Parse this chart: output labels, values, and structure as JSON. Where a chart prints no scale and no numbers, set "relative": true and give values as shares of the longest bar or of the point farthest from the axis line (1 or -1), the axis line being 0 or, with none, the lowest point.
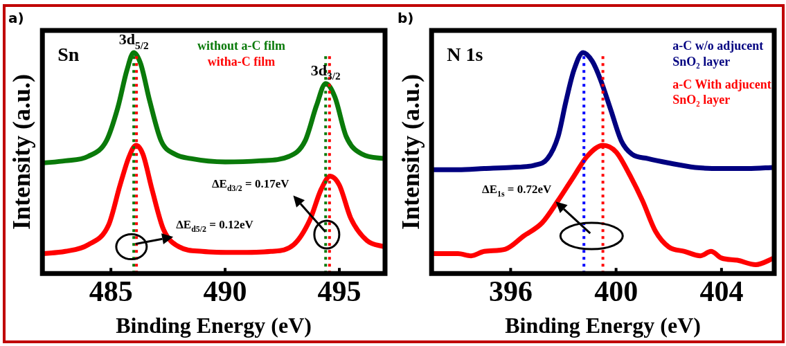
{
  "chart_data": [
    {
      "type": "line",
      "title": "a)",
      "xlabel": "Binding Energy (eV)",
      "ylabel": "Intensity (a.u.)",
      "relative": true,
      "legend": "top",
      "line_style": "solid",
      "xlim": [
        482,
        497
      ],
      "xticks": [
        485,
        490,
        495
      ],
      "series": [
        {
          "name": "without a-C film",
          "color": "#0a7a0a",
          "x": [
            482,
            483,
            484,
            484.8,
            485.3,
            485.7,
            486.0,
            486.3,
            486.7,
            487.2,
            487.8,
            488.5,
            490,
            491.5,
            492.8,
            493.5,
            494.0,
            494.4,
            494.8,
            495.3,
            496,
            497
          ],
          "values": [
            0.5,
            0.51,
            0.53,
            0.6,
            0.75,
            0.92,
            1.0,
            0.95,
            0.78,
            0.6,
            0.54,
            0.52,
            0.505,
            0.51,
            0.53,
            0.6,
            0.76,
            0.86,
            0.8,
            0.62,
            0.54,
            0.52
          ]
        },
        {
          "name": "witha-C film",
          "color": "#ff0000",
          "x": [
            482,
            483,
            484,
            484.9,
            485.4,
            485.8,
            486.1,
            486.4,
            486.8,
            487.3,
            488,
            489,
            490.5,
            492,
            493,
            493.7,
            494.2,
            494.6,
            495,
            495.5,
            496.2,
            497
          ],
          "values": [
            0.09,
            0.1,
            0.13,
            0.22,
            0.4,
            0.53,
            0.58,
            0.54,
            0.38,
            0.2,
            0.12,
            0.1,
            0.095,
            0.1,
            0.13,
            0.24,
            0.38,
            0.44,
            0.4,
            0.25,
            0.15,
            0.12
          ]
        }
      ],
      "ref_lines": [
        {
          "axis": "x",
          "value": 486.0,
          "color": "#0a7a0a",
          "line_style": "dotted"
        },
        {
          "axis": "x",
          "value": 486.12,
          "color": "#ff0000",
          "line_style": "dotted"
        },
        {
          "axis": "x",
          "value": 494.4,
          "color": "#0a7a0a",
          "line_style": "dotted"
        },
        {
          "axis": "x",
          "value": 494.57,
          "color": "#ff0000",
          "line_style": "dotted"
        }
      ],
      "annotations": [
        "Sn",
        {
          "text": "3d$_{5/2}$",
          "x": 486.0,
          "y": 1.0
        },
        {
          "text": "3d$_{3/2}$",
          "x": 494.4,
          "y": 0.86
        },
        "ΔE$_{d3/2}$ = 0.17eV",
        "ΔE$_{d5/2}$ = 0.12eV"
      ]
    },
    {
      "type": "line",
      "title": "b)",
      "xlabel": "Binding Energy (eV)",
      "ylabel": "Intensity (a.u.)",
      "relative": true,
      "legend": "top right",
      "line_style": "solid",
      "xlim": [
        393,
        406
      ],
      "xticks": [
        396,
        400,
        404
      ],
      "series": [
        {
          "name": "a-C w/o adjucent SnO₂ layer",
          "color": "#000080",
          "x": [
            393,
            394,
            395,
            396,
            396.9,
            397.4,
            397.8,
            398.1,
            398.4,
            398.75,
            399.1,
            399.4,
            399.8,
            400.2,
            400.6,
            401.2,
            402,
            403,
            404,
            405,
            406
          ],
          "values": [
            0.47,
            0.47,
            0.475,
            0.48,
            0.49,
            0.52,
            0.62,
            0.78,
            0.92,
            1.0,
            0.96,
            0.88,
            0.74,
            0.6,
            0.54,
            0.52,
            0.5,
            0.48,
            0.475,
            0.475,
            0.48
          ]
        },
        {
          "name": "a-C With adjucent SnO₂ layer",
          "color": "#ff0000",
          "x": [
            393,
            394,
            394.5,
            395,
            395.8,
            396.5,
            397.2,
            397.8,
            398.4,
            398.9,
            399.5,
            400,
            400.5,
            401,
            401.5,
            402,
            402.6,
            403.2,
            403.6,
            404,
            404.6,
            405.3,
            406
          ],
          "values": [
            0.09,
            0.09,
            0.08,
            0.1,
            0.11,
            0.17,
            0.23,
            0.33,
            0.44,
            0.53,
            0.58,
            0.55,
            0.45,
            0.33,
            0.19,
            0.12,
            0.1,
            0.08,
            0.1,
            0.07,
            0.06,
            0.04,
            0.07
          ]
        }
      ],
      "ref_lines": [
        {
          "axis": "x",
          "value": 398.78,
          "color": "#0000ff",
          "line_style": "dotted"
        },
        {
          "axis": "x",
          "value": 399.5,
          "color": "#ff0000",
          "line_style": "dotted"
        }
      ],
      "annotations": [
        "N 1s",
        "ΔE$_{1s}$ = 0.72eV"
      ]
    }
  ]
}
